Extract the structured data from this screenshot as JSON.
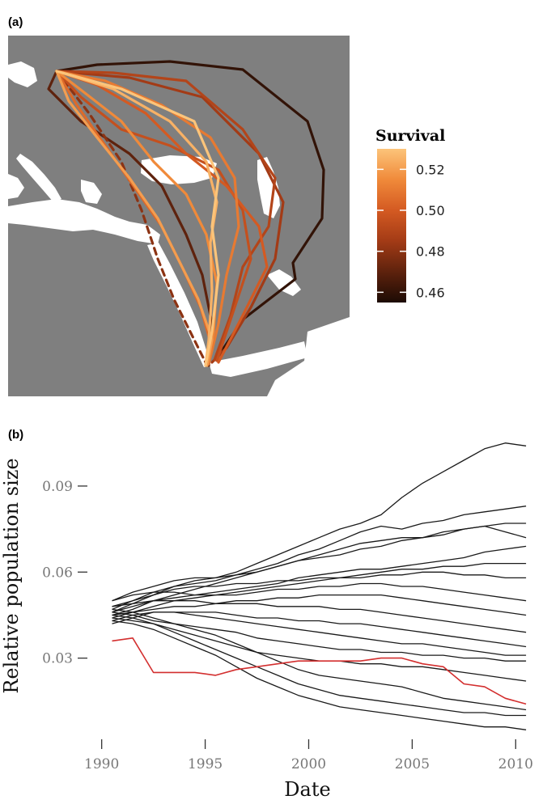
{
  "map_panel": {
    "label": "(a)",
    "land_color": "#7f7f7f",
    "sea_color": "#ffffff",
    "legend": {
      "title": "Survival",
      "ticks": [
        "0.52",
        "0.50",
        "0.48",
        "0.46"
      ],
      "range": [
        0.455,
        0.53
      ],
      "colors": [
        "#1c0b04",
        "#5e220d",
        "#a33b16",
        "#d45a22",
        "#f08a3a",
        "#fcc47a"
      ]
    },
    "routes": [
      {
        "survival": 0.46,
        "style": "solid"
      },
      {
        "survival": 0.47,
        "style": "solid"
      },
      {
        "survival": 0.48,
        "style": "dashed"
      },
      {
        "survival": 0.485,
        "style": "solid"
      },
      {
        "survival": 0.49,
        "style": "solid"
      },
      {
        "survival": 0.495,
        "style": "solid"
      },
      {
        "survival": 0.5,
        "style": "solid"
      },
      {
        "survival": 0.505,
        "style": "solid"
      },
      {
        "survival": 0.51,
        "style": "solid"
      },
      {
        "survival": 0.515,
        "style": "solid"
      },
      {
        "survival": 0.52,
        "style": "solid"
      },
      {
        "survival": 0.525,
        "style": "solid"
      },
      {
        "survival": 0.53,
        "style": "solid"
      }
    ]
  },
  "chart_data": {
    "type": "line",
    "panel_label": "(b)",
    "title": "",
    "xlabel": "Date",
    "ylabel": "Relative population size",
    "xlim": [
      1989.7,
      2011.2
    ],
    "ylim": [
      0,
      0.11
    ],
    "xticks": [
      1990,
      1995,
      2000,
      2005,
      2010
    ],
    "yticks": [
      0.03,
      0.06,
      0.09
    ],
    "x": [
      1990.5,
      1991.5,
      1992.5,
      1993.5,
      1994.5,
      1995.5,
      1996.5,
      1997.5,
      1998.5,
      1999.5,
      2000.5,
      2001.5,
      2002.5,
      2003.5,
      2004.5,
      2005.5,
      2006.5,
      2007.5,
      2008.5,
      2009.5,
      2010.5
    ],
    "series": [
      {
        "color": "#1a1a1a",
        "values": [
          0.046,
          0.049,
          0.052,
          0.055,
          0.057,
          0.058,
          0.06,
          0.063,
          0.066,
          0.069,
          0.072,
          0.075,
          0.077,
          0.08,
          0.086,
          0.091,
          0.095,
          0.099,
          0.103,
          0.105,
          0.104
        ]
      },
      {
        "color": "#1a1a1a",
        "values": [
          0.048,
          0.05,
          0.053,
          0.055,
          0.056,
          0.057,
          0.059,
          0.061,
          0.063,
          0.066,
          0.068,
          0.071,
          0.074,
          0.076,
          0.075,
          0.077,
          0.078,
          0.08,
          0.081,
          0.082,
          0.083
        ]
      },
      {
        "color": "#1a1a1a",
        "values": [
          0.045,
          0.047,
          0.05,
          0.052,
          0.054,
          0.056,
          0.058,
          0.06,
          0.062,
          0.064,
          0.065,
          0.066,
          0.068,
          0.069,
          0.071,
          0.072,
          0.074,
          0.075,
          0.076,
          0.077,
          0.077
        ]
      },
      {
        "color": "#1a1a1a",
        "values": [
          0.05,
          0.053,
          0.055,
          0.057,
          0.058,
          0.058,
          0.059,
          0.06,
          0.062,
          0.064,
          0.066,
          0.068,
          0.07,
          0.071,
          0.072,
          0.072,
          0.073,
          0.075,
          0.076,
          0.074,
          0.072
        ]
      },
      {
        "color": "#1a1a1a",
        "values": [
          0.046,
          0.048,
          0.05,
          0.051,
          0.052,
          0.053,
          0.054,
          0.055,
          0.056,
          0.058,
          0.059,
          0.06,
          0.061,
          0.061,
          0.062,
          0.063,
          0.064,
          0.065,
          0.067,
          0.068,
          0.069
        ]
      },
      {
        "color": "#1a1a1a",
        "values": [
          0.044,
          0.046,
          0.048,
          0.05,
          0.051,
          0.052,
          0.053,
          0.054,
          0.055,
          0.056,
          0.057,
          0.058,
          0.059,
          0.06,
          0.061,
          0.061,
          0.062,
          0.062,
          0.063,
          0.063,
          0.063
        ]
      },
      {
        "color": "#1a1a1a",
        "values": [
          0.047,
          0.05,
          0.052,
          0.054,
          0.055,
          0.055,
          0.056,
          0.056,
          0.057,
          0.057,
          0.058,
          0.058,
          0.058,
          0.059,
          0.059,
          0.06,
          0.06,
          0.059,
          0.059,
          0.058,
          0.058
        ]
      },
      {
        "color": "#1a1a1a",
        "values": [
          0.05,
          0.052,
          0.053,
          0.053,
          0.052,
          0.052,
          0.052,
          0.053,
          0.054,
          0.054,
          0.055,
          0.055,
          0.056,
          0.056,
          0.055,
          0.055,
          0.054,
          0.053,
          0.052,
          0.051,
          0.05
        ]
      },
      {
        "color": "#1a1a1a",
        "values": [
          0.045,
          0.046,
          0.047,
          0.048,
          0.048,
          0.049,
          0.05,
          0.05,
          0.051,
          0.051,
          0.052,
          0.052,
          0.052,
          0.052,
          0.051,
          0.05,
          0.049,
          0.048,
          0.047,
          0.046,
          0.045
        ]
      },
      {
        "color": "#1a1a1a",
        "values": [
          0.048,
          0.049,
          0.05,
          0.05,
          0.05,
          0.049,
          0.049,
          0.049,
          0.048,
          0.048,
          0.048,
          0.047,
          0.047,
          0.046,
          0.045,
          0.044,
          0.043,
          0.042,
          0.041,
          0.04,
          0.039
        ]
      },
      {
        "color": "#1a1a1a",
        "values": [
          0.042,
          0.044,
          0.046,
          0.046,
          0.046,
          0.046,
          0.045,
          0.044,
          0.044,
          0.043,
          0.043,
          0.042,
          0.042,
          0.041,
          0.04,
          0.039,
          0.038,
          0.037,
          0.036,
          0.035,
          0.034
        ]
      },
      {
        "color": "#1a1a1a",
        "values": [
          0.043,
          0.045,
          0.046,
          0.046,
          0.045,
          0.044,
          0.043,
          0.042,
          0.041,
          0.04,
          0.039,
          0.038,
          0.037,
          0.036,
          0.035,
          0.035,
          0.034,
          0.033,
          0.032,
          0.031,
          0.031
        ]
      },
      {
        "color": "#1a1a1a",
        "values": [
          0.046,
          0.045,
          0.043,
          0.042,
          0.041,
          0.04,
          0.039,
          0.037,
          0.036,
          0.035,
          0.034,
          0.033,
          0.033,
          0.032,
          0.032,
          0.031,
          0.031,
          0.03,
          0.03,
          0.029,
          0.029
        ]
      },
      {
        "color": "#1a1a1a",
        "values": [
          0.044,
          0.043,
          0.042,
          0.04,
          0.038,
          0.036,
          0.034,
          0.032,
          0.031,
          0.03,
          0.029,
          0.029,
          0.028,
          0.028,
          0.027,
          0.027,
          0.026,
          0.025,
          0.024,
          0.023,
          0.022
        ]
      },
      {
        "color": "#1a1a1a",
        "values": [
          0.047,
          0.046,
          0.044,
          0.042,
          0.04,
          0.038,
          0.035,
          0.032,
          0.029,
          0.026,
          0.024,
          0.023,
          0.022,
          0.021,
          0.02,
          0.018,
          0.016,
          0.015,
          0.014,
          0.013,
          0.012
        ]
      },
      {
        "color": "#1a1a1a",
        "values": [
          0.045,
          0.044,
          0.042,
          0.039,
          0.036,
          0.033,
          0.03,
          0.027,
          0.024,
          0.021,
          0.019,
          0.017,
          0.016,
          0.015,
          0.014,
          0.013,
          0.012,
          0.011,
          0.011,
          0.01,
          0.01
        ]
      },
      {
        "color": "#1a1a1a",
        "values": [
          0.043,
          0.042,
          0.04,
          0.037,
          0.034,
          0.031,
          0.027,
          0.023,
          0.02,
          0.017,
          0.015,
          0.013,
          0.012,
          0.011,
          0.01,
          0.009,
          0.008,
          0.007,
          0.006,
          0.006,
          0.005
        ]
      },
      {
        "color": "#d32f2f",
        "values": [
          0.036,
          0.037,
          0.025,
          0.025,
          0.025,
          0.024,
          0.026,
          0.027,
          0.028,
          0.029,
          0.029,
          0.029,
          0.029,
          0.03,
          0.03,
          0.028,
          0.027,
          0.021,
          0.02,
          0.016,
          0.014
        ]
      }
    ]
  }
}
